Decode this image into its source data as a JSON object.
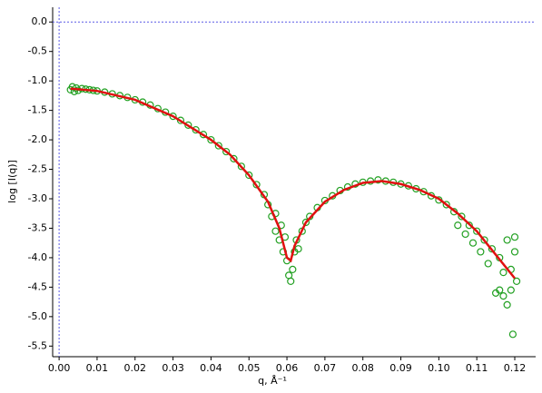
{
  "chart_data": {
    "type": "scatter",
    "x_label": "q, Å⁻¹",
    "y_label": "log [I(q)]",
    "xlim": [
      -0.0017,
      0.1255
    ],
    "ylim": [
      -5.68,
      0.25
    ],
    "xticks": [
      {
        "value": 0,
        "label": "0.00"
      },
      {
        "value": 0.01,
        "label": "0.01"
      },
      {
        "value": 0.02,
        "label": "0.02"
      },
      {
        "value": 0.03,
        "label": "0.03"
      },
      {
        "value": 0.04,
        "label": "0.04"
      },
      {
        "value": 0.05,
        "label": "0.05"
      },
      {
        "value": 0.06,
        "label": "0.06"
      },
      {
        "value": 0.07,
        "label": "0.07"
      },
      {
        "value": 0.08,
        "label": "0.08"
      },
      {
        "value": 0.09,
        "label": "0.09"
      },
      {
        "value": 0.1,
        "label": "0.10"
      },
      {
        "value": 0.11,
        "label": "0.11"
      },
      {
        "value": 0.12,
        "label": "0.12"
      }
    ],
    "yticks": [
      {
        "value": 0,
        "label": "0.0"
      },
      {
        "value": -0.5,
        "label": "-0.5"
      },
      {
        "value": -1,
        "label": "-1.0"
      },
      {
        "value": -1.5,
        "label": "-1.5"
      },
      {
        "value": -2,
        "label": "-2.0"
      },
      {
        "value": -2.5,
        "label": "-2.5"
      },
      {
        "value": -3,
        "label": "-3.0"
      },
      {
        "value": -3.5,
        "label": "-3.5"
      },
      {
        "value": -4,
        "label": "-4.0"
      },
      {
        "value": -4.5,
        "label": "-4.5"
      },
      {
        "value": -5,
        "label": "-5.0"
      },
      {
        "value": -5.5,
        "label": "-5.5"
      }
    ],
    "reference_lines": {
      "x": 0,
      "y": 0,
      "color": "#5a5ae6"
    },
    "series": [
      {
        "type": "scatter",
        "color": "#22a022",
        "marker": "open-circle",
        "x": [
          0.003,
          0.0035,
          0.004,
          0.0045,
          0.005,
          0.006,
          0.007,
          0.008,
          0.009,
          0.01,
          0.012,
          0.014,
          0.016,
          0.018,
          0.02,
          0.022,
          0.024,
          0.026,
          0.028,
          0.03,
          0.032,
          0.034,
          0.036,
          0.038,
          0.04,
          0.042,
          0.044,
          0.046,
          0.048,
          0.05,
          0.052,
          0.054,
          0.055,
          0.056,
          0.057,
          0.057,
          0.058,
          0.0585,
          0.059,
          0.0595,
          0.06,
          0.0605,
          0.061,
          0.0615,
          0.062,
          0.0625,
          0.063,
          0.064,
          0.065,
          0.066,
          0.068,
          0.07,
          0.072,
          0.074,
          0.076,
          0.078,
          0.08,
          0.082,
          0.084,
          0.086,
          0.088,
          0.09,
          0.092,
          0.094,
          0.096,
          0.098,
          0.1,
          0.102,
          0.104,
          0.105,
          0.106,
          0.107,
          0.108,
          0.109,
          0.11,
          0.111,
          0.112,
          0.113,
          0.114,
          0.115,
          0.116,
          0.116,
          0.117,
          0.117,
          0.118,
          0.118,
          0.119,
          0.119,
          0.1195,
          0.12,
          0.12,
          0.1205
        ],
        "values": [
          -1.15,
          -1.1,
          -1.18,
          -1.12,
          -1.16,
          -1.13,
          -1.14,
          -1.15,
          -1.16,
          -1.17,
          -1.19,
          -1.22,
          -1.25,
          -1.28,
          -1.32,
          -1.36,
          -1.41,
          -1.47,
          -1.53,
          -1.6,
          -1.67,
          -1.75,
          -1.83,
          -1.91,
          -2.0,
          -2.1,
          -2.2,
          -2.32,
          -2.45,
          -2.6,
          -2.76,
          -2.93,
          -3.1,
          -3.3,
          -3.25,
          -3.55,
          -3.7,
          -3.45,
          -3.9,
          -3.65,
          -4.05,
          -4.3,
          -4.4,
          -4.2,
          -3.9,
          -3.7,
          -3.85,
          -3.55,
          -3.4,
          -3.3,
          -3.15,
          -3.03,
          -2.95,
          -2.86,
          -2.8,
          -2.75,
          -2.72,
          -2.7,
          -2.68,
          -2.7,
          -2.72,
          -2.75,
          -2.78,
          -2.83,
          -2.88,
          -2.95,
          -3.02,
          -3.1,
          -3.22,
          -3.45,
          -3.3,
          -3.6,
          -3.45,
          -3.75,
          -3.55,
          -3.9,
          -3.7,
          -4.1,
          -3.85,
          -4.6,
          -4.0,
          -4.55,
          -4.25,
          -4.65,
          -4.8,
          -3.7,
          -4.55,
          -4.2,
          -5.3,
          -3.65,
          -3.9,
          -4.4
        ]
      },
      {
        "type": "line",
        "color": "#e01010",
        "x": [
          0.003,
          0.01,
          0.02,
          0.03,
          0.04,
          0.045,
          0.05,
          0.055,
          0.058,
          0.06,
          0.061,
          0.062,
          0.065,
          0.07,
          0.075,
          0.08,
          0.085,
          0.09,
          0.095,
          0.1,
          0.105,
          0.11,
          0.115,
          0.12
        ],
        "values": [
          -1.13,
          -1.17,
          -1.32,
          -1.6,
          -2.0,
          -2.25,
          -2.6,
          -3.05,
          -3.5,
          -4.0,
          -4.05,
          -3.8,
          -3.4,
          -3.05,
          -2.85,
          -2.73,
          -2.7,
          -2.75,
          -2.85,
          -3.0,
          -3.25,
          -3.55,
          -3.95,
          -4.35
        ]
      }
    ]
  }
}
